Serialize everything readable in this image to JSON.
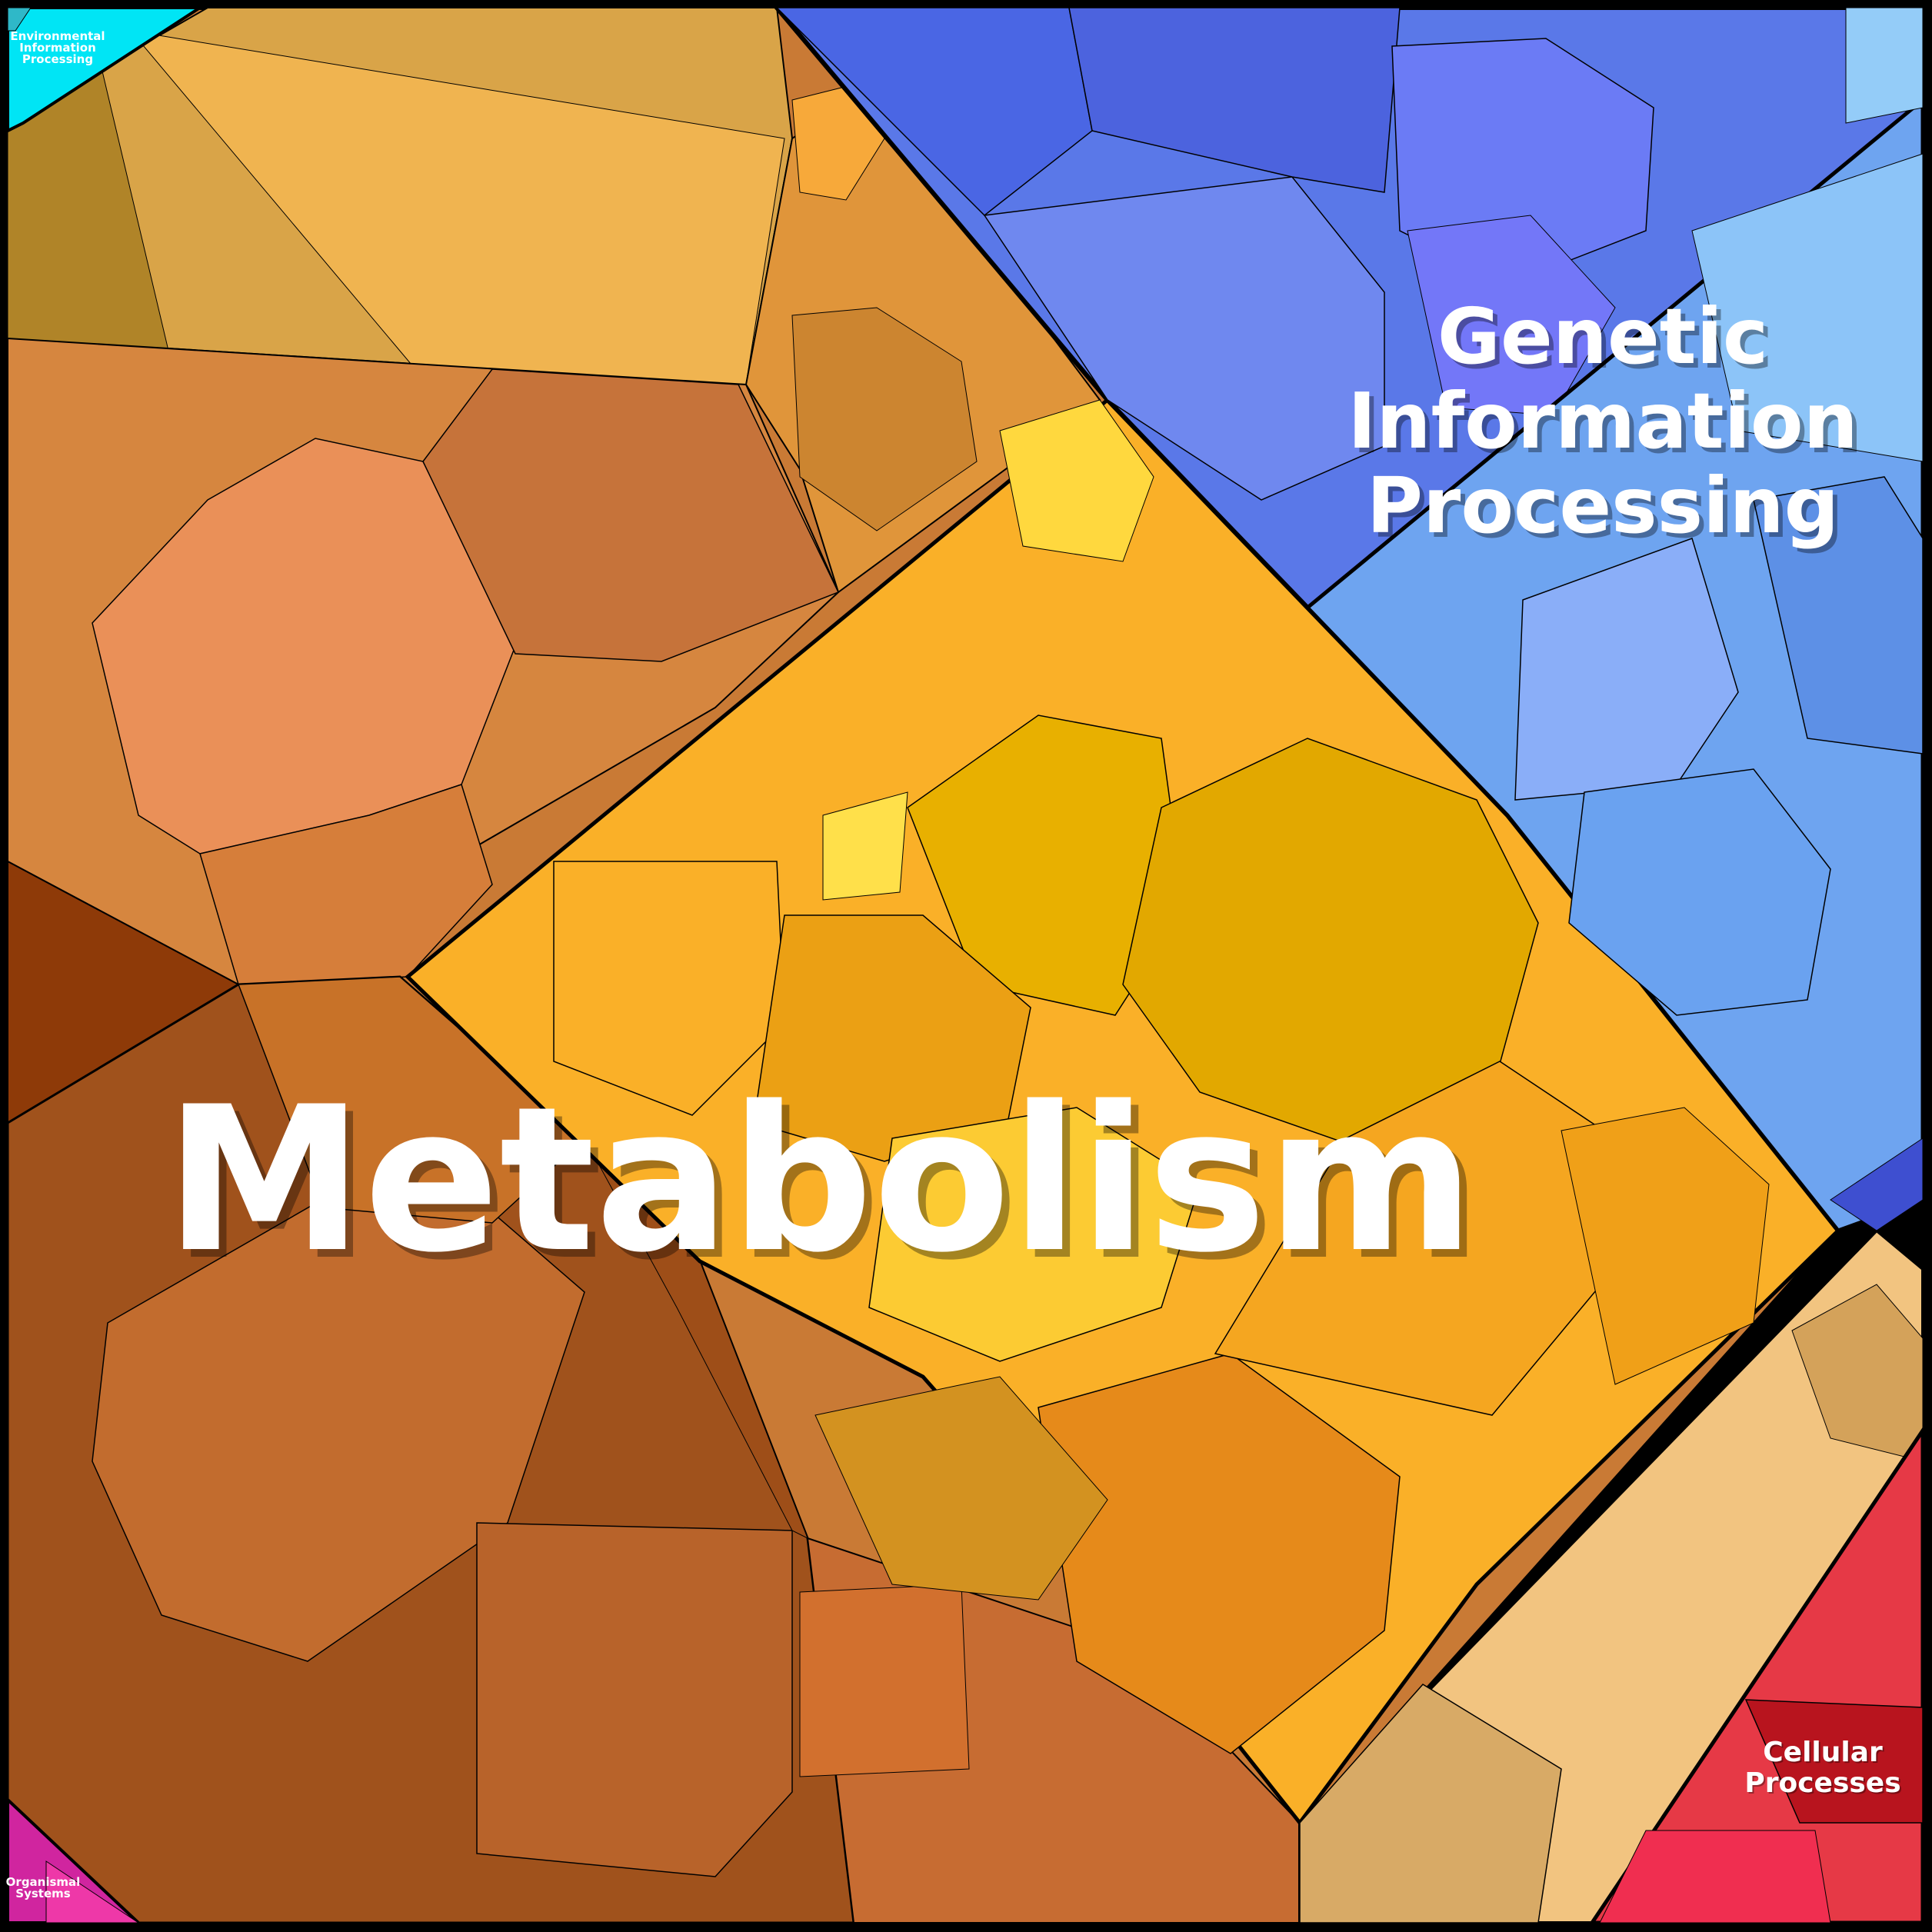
{
  "diagram": {
    "type": "voronoi-treemap",
    "regions": [
      {
        "id": "metabolism",
        "label": "Metabolism",
        "color": "#E0A020"
      },
      {
        "id": "genetic",
        "label_lines": [
          "Genetic",
          "Information",
          "Processing"
        ],
        "color": "#5577EE"
      },
      {
        "id": "cellular",
        "label_lines": [
          "Cellular",
          "Processes"
        ],
        "color": "#E63946"
      },
      {
        "id": "environmental",
        "label_lines": [
          "Environmental",
          "Information",
          "Processing"
        ],
        "color": "#00E5F5"
      },
      {
        "id": "organismal",
        "label_lines": [
          "Organismal",
          "Systems"
        ],
        "color": "#D0259F"
      }
    ]
  }
}
